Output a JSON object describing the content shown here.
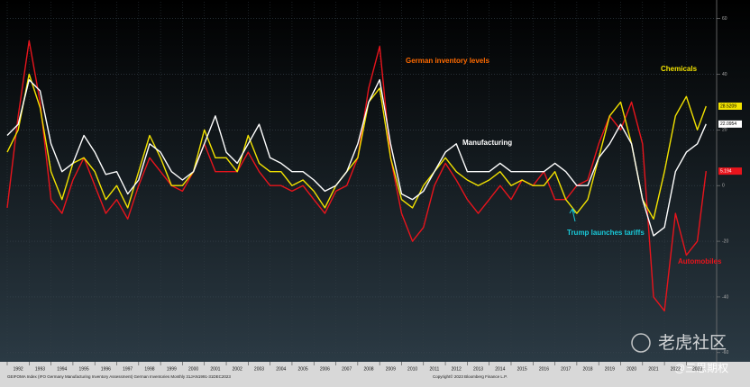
{
  "chart_data": {
    "type": "line",
    "title": "German inventory levels",
    "footer_left": "GEIFOMA Index (IFO Germany Manufacturing Inventory Assessment) German Inventories Monthly 31JAN1991-31DEC2023",
    "footer_right": "Copyright© 2023 Bloomberg Finance L.P.",
    "annotation": "Trump launches tariffs",
    "watermark": "老虎社区",
    "watermark_handle": "@三思期权",
    "x": [
      1992,
      1992.5,
      1993,
      1993.5,
      1994,
      1994.5,
      1995,
      1995.5,
      1996,
      1996.5,
      1997,
      1997.5,
      1998,
      1998.5,
      1999,
      1999.5,
      2000,
      2000.5,
      2001,
      2001.5,
      2002,
      2002.5,
      2003,
      2003.5,
      2004,
      2004.5,
      2005,
      2005.5,
      2006,
      2006.5,
      2007,
      2007.5,
      2008,
      2008.5,
      2009,
      2009.5,
      2010,
      2010.5,
      2011,
      2011.5,
      2012,
      2012.5,
      2013,
      2013.5,
      2014,
      2014.5,
      2015,
      2015.5,
      2016,
      2016.5,
      2017,
      2017.5,
      2018,
      2018.5,
      2019,
      2019.5,
      2020,
      2020.5,
      2021,
      2021.5,
      2022,
      2022.5,
      2023,
      2023.5,
      2023.9
    ],
    "series": [
      {
        "name": "Automobiles",
        "color": "#e8141c",
        "values": [
          -8,
          25,
          52,
          30,
          -5,
          -10,
          2,
          10,
          0,
          -10,
          -5,
          -12,
          0,
          10,
          5,
          0,
          -2,
          5,
          15,
          5,
          5,
          5,
          12,
          5,
          0,
          0,
          -2,
          0,
          -5,
          -10,
          -2,
          0,
          10,
          35,
          50,
          10,
          -10,
          -20,
          -15,
          0,
          8,
          2,
          -5,
          -10,
          -5,
          0,
          -5,
          2,
          0,
          5,
          -5,
          -5,
          0,
          2,
          15,
          25,
          20,
          30,
          15,
          -40,
          -45,
          -10,
          -25,
          -20,
          5.194
        ]
      },
      {
        "name": "Chemicals",
        "color": "#f2e200",
        "values": [
          12,
          20,
          40,
          28,
          5,
          -5,
          8,
          10,
          5,
          -5,
          0,
          -8,
          5,
          18,
          10,
          0,
          0,
          5,
          20,
          10,
          10,
          5,
          18,
          8,
          5,
          5,
          0,
          2,
          -2,
          -8,
          0,
          5,
          10,
          30,
          35,
          10,
          -5,
          -8,
          0,
          5,
          10,
          5,
          2,
          0,
          2,
          5,
          0,
          2,
          0,
          0,
          5,
          -5,
          -10,
          -5,
          10,
          25,
          30,
          15,
          -5,
          -12,
          5,
          25,
          32,
          20,
          28.5209
        ]
      },
      {
        "name": "Manufacturing",
        "color": "#ffffff",
        "values": [
          18,
          22,
          38,
          34,
          15,
          5,
          8,
          18,
          12,
          4,
          5,
          -3,
          2,
          15,
          12,
          5,
          2,
          5,
          15,
          25,
          12,
          8,
          15,
          22,
          10,
          8,
          5,
          5,
          2,
          -2,
          0,
          5,
          15,
          30,
          38,
          15,
          -3,
          -5,
          -2,
          5,
          12,
          15,
          5,
          5,
          5,
          8,
          5,
          5,
          5,
          5,
          8,
          5,
          0,
          0,
          10,
          15,
          22,
          15,
          -5,
          -18,
          -15,
          5,
          12,
          15,
          22.0954
        ]
      }
    ],
    "xlim": [
      1992,
      2024.3
    ],
    "xticks": [
      1992,
      1993,
      1994,
      1995,
      1996,
      1997,
      1998,
      1999,
      2000,
      2001,
      2002,
      2003,
      2004,
      2005,
      2006,
      2007,
      2008,
      2009,
      2010,
      2011,
      2012,
      2013,
      2014,
      2015,
      2016,
      2017,
      2018,
      2019,
      2020,
      2021,
      2022,
      2023
    ],
    "ylim": [
      -62,
      66
    ],
    "yticks": [
      -60,
      -40,
      -20,
      0,
      20,
      40,
      60
    ],
    "grid": true
  }
}
